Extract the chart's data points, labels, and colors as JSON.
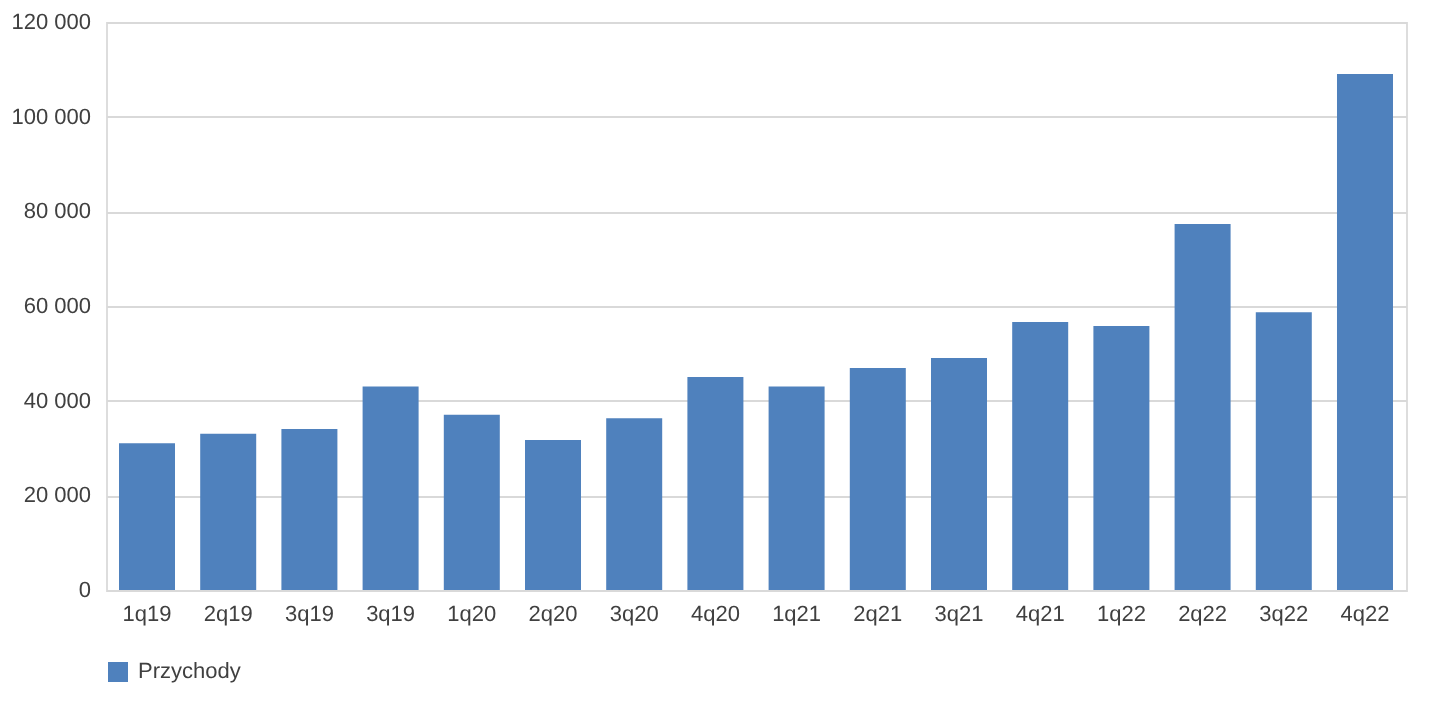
{
  "chart_data": {
    "type": "bar",
    "categories": [
      "1q19",
      "2q19",
      "3q19",
      "3q19",
      "1q20",
      "2q20",
      "3q20",
      "4q20",
      "1q21",
      "2q21",
      "3q21",
      "4q21",
      "1q22",
      "2q22",
      "3q22",
      "4q22"
    ],
    "series": [
      {
        "name": "Przychody",
        "color": "#4f81bd",
        "values": [
          31000,
          33000,
          34000,
          43000,
          37000,
          31700,
          36300,
          45000,
          43000,
          46900,
          49000,
          56600,
          55800,
          77300,
          58700,
          109000
        ]
      }
    ],
    "ylim": [
      0,
      120000
    ],
    "yticks": [
      {
        "value": 0,
        "label": "0"
      },
      {
        "value": 20000,
        "label": "20 000"
      },
      {
        "value": 40000,
        "label": "40 000"
      },
      {
        "value": 60000,
        "label": "60 000"
      },
      {
        "value": 80000,
        "label": "80 000"
      },
      {
        "value": 100000,
        "label": "100 000"
      },
      {
        "value": 120000,
        "label": "120 000"
      }
    ],
    "grid": "y",
    "legend": "bottom"
  }
}
